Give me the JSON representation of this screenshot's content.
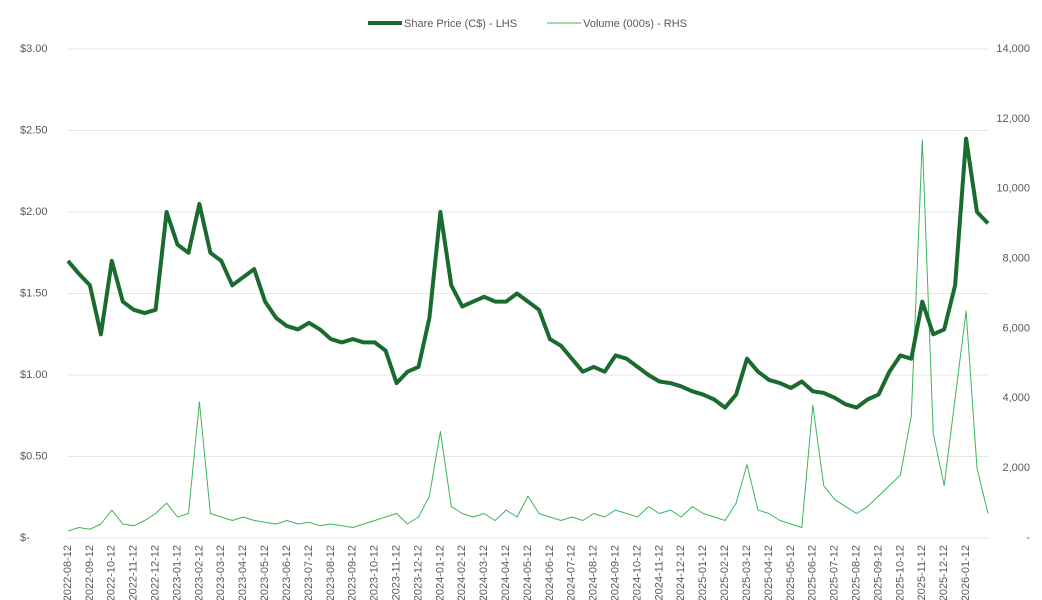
{
  "chart_data": {
    "type": "line",
    "categories": [
      "2022-08-12",
      null,
      "2022-09-12",
      null,
      "2022-10-12",
      null,
      "2022-11-12",
      null,
      "2022-12-12",
      null,
      "2023-01-12",
      null,
      "2023-02-12",
      null,
      "2023-03-12",
      null,
      "2023-04-12",
      null,
      "2023-05-12",
      null,
      "2023-06-12",
      null,
      "2023-07-12",
      null,
      "2023-08-12",
      null,
      "2023-09-12",
      null,
      "2023-10-12",
      null,
      "2023-11-12",
      null,
      "2023-12-12",
      null,
      "2024-01-12",
      null,
      "2024-02-12",
      null,
      "2024-03-12",
      null,
      "2024-04-12",
      null,
      "2024-05-12",
      null,
      "2024-06-12",
      null,
      "2024-07-12",
      null,
      "2024-08-12",
      null,
      "2024-09-12",
      null,
      "2024-10-12",
      null,
      "2024-11-12",
      null,
      "2024-12-12",
      null,
      "2025-01-12",
      null,
      "2025-02-12",
      null,
      "2025-03-12",
      null,
      "2025-04-12",
      null,
      "2025-05-12",
      null,
      "2025-06-12",
      null,
      "2025-07-12",
      null,
      "2025-08-12",
      null,
      "2025-09-12",
      null,
      "2025-10-12",
      null,
      "2025-11-12",
      null,
      "2025-12-12",
      null,
      "2026-01-12",
      null,
      null
    ],
    "series": [
      {
        "name": "Share Price (C$) - LHS",
        "color": "#1a6b30",
        "axis": "y",
        "values": [
          1.7,
          1.62,
          1.55,
          1.25,
          1.7,
          1.45,
          1.4,
          1.38,
          1.4,
          2.0,
          1.8,
          1.75,
          2.05,
          1.75,
          1.7,
          1.55,
          1.6,
          1.65,
          1.45,
          1.35,
          1.3,
          1.28,
          1.32,
          1.28,
          1.22,
          1.2,
          1.22,
          1.2,
          1.2,
          1.15,
          0.95,
          1.02,
          1.05,
          1.35,
          2.0,
          1.55,
          1.42,
          1.45,
          1.48,
          1.45,
          1.45,
          1.5,
          1.45,
          1.4,
          1.22,
          1.18,
          1.1,
          1.02,
          1.05,
          1.02,
          1.12,
          1.1,
          1.05,
          1.0,
          0.96,
          0.95,
          0.93,
          0.9,
          0.88,
          0.85,
          0.8,
          0.88,
          1.1,
          1.02,
          0.97,
          0.95,
          0.92,
          0.96,
          0.9,
          0.89,
          0.86,
          0.82,
          0.8,
          0.85,
          0.88,
          1.02,
          1.12,
          1.1,
          1.45,
          1.25,
          1.28,
          1.55,
          2.45,
          2.0,
          1.93
        ]
      },
      {
        "name": "Volume (000s) - RHS",
        "color": "#3cb55c",
        "axis": "y2",
        "values": [
          200,
          300,
          250,
          400,
          800,
          400,
          350,
          500,
          700,
          1000,
          600,
          700,
          3900,
          700,
          600,
          500,
          600,
          500,
          450,
          400,
          500,
          400,
          450,
          350,
          400,
          350,
          300,
          400,
          500,
          600,
          700,
          400,
          600,
          1200,
          3050,
          900,
          700,
          600,
          700,
          500,
          800,
          600,
          1200,
          700,
          600,
          500,
          600,
          500,
          700,
          600,
          800,
          700,
          600,
          900,
          700,
          800,
          600,
          900,
          700,
          600,
          500,
          1000,
          2100,
          800,
          700,
          500,
          400,
          300,
          3800,
          1500,
          1100,
          900,
          700,
          900,
          1200,
          1500,
          1800,
          3500,
          11400,
          3000,
          1500,
          4000,
          6500,
          2000,
          700
        ]
      }
    ],
    "ylim": [
      0,
      3
    ],
    "yticks": [
      {
        "value": 0,
        "label": "$-"
      },
      {
        "value": 0.5,
        "label": "$0.50"
      },
      {
        "value": 1,
        "label": "$1.00"
      },
      {
        "value": 1.5,
        "label": "$1.50"
      },
      {
        "value": 2,
        "label": "$2.00"
      },
      {
        "value": 2.5,
        "label": "$2.50"
      },
      {
        "value": 3,
        "label": "$3.00"
      }
    ],
    "y2lim": [
      0,
      14000
    ],
    "y2ticks": [
      {
        "value": 0,
        "label": "-"
      },
      {
        "value": 2000,
        "label": "2,000"
      },
      {
        "value": 4000,
        "label": "4,000"
      },
      {
        "value": 6000,
        "label": "6,000"
      },
      {
        "value": 8000,
        "label": "8,000"
      },
      {
        "value": 10000,
        "label": "10,000"
      },
      {
        "value": 12000,
        "label": "12,000"
      },
      {
        "value": 14000,
        "label": "14,000"
      }
    ],
    "grid": true,
    "legend": "top"
  }
}
